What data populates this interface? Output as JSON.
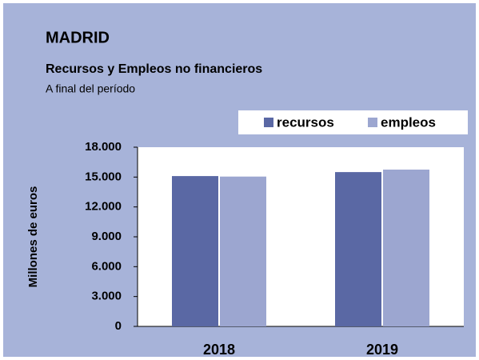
{
  "chart_data": {
    "type": "bar",
    "title": "MADRID",
    "subtitle": "Recursos y Empleos no financieros",
    "note": "A final del período",
    "y_label": "Millones de euros",
    "categories": [
      "2018",
      "2019"
    ],
    "series": [
      {
        "name": "recursos",
        "color": "#5a68a4",
        "values": [
          15100,
          15500
        ]
      },
      {
        "name": "empleos",
        "color": "#9ca6d0",
        "values": [
          15050,
          15750
        ]
      }
    ],
    "ylim": [
      0,
      18000
    ],
    "yticks": [
      0,
      {
        "value": 3000,
        "label": "3.000"
      },
      {
        "value": 6000,
        "label": "6.000"
      },
      {
        "value": 9000,
        "label": "9.000"
      },
      {
        "value": 12000,
        "label": "12.000"
      },
      {
        "value": 15000,
        "label": "15.000"
      },
      {
        "value": 18000,
        "label": "18.000"
      }
    ],
    "grid": false,
    "legend": "top-right"
  }
}
